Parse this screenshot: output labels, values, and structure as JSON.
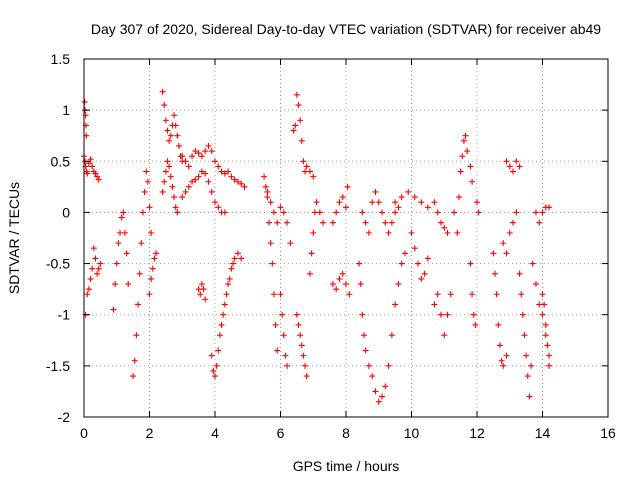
{
  "chart_data": {
    "type": "scatter",
    "title": "Day 307 of 2020, Sidereal Day-to-day VTEC variation (SDTVAR) for receiver ab49",
    "xlabel": "GPS time / hours",
    "ylabel": "SDTVAR / TECUs",
    "xlim": [
      0,
      16
    ],
    "ylim": [
      -2,
      1.5
    ],
    "xticks": [
      "0",
      "2",
      "4",
      "6",
      "8",
      "10",
      "12",
      "14",
      "16"
    ],
    "yticks": [
      "1.5",
      "1",
      "0.5",
      "0",
      "-0.5",
      "-1",
      "-1.5",
      "-2"
    ],
    "grid": true,
    "marker": "+",
    "series_color": "#ff0000",
    "series": [
      {
        "name": "SDTVAR",
        "points": [
          [
            0.0,
            0.55
          ],
          [
            0.03,
            0.5
          ],
          [
            0.05,
            0.45
          ],
          [
            0.08,
            0.4
          ],
          [
            0.1,
            0.38
          ],
          [
            0.15,
            0.48
          ],
          [
            0.2,
            0.52
          ],
          [
            0.25,
            0.45
          ],
          [
            0.3,
            0.4
          ],
          [
            0.35,
            0.38
          ],
          [
            0.4,
            0.35
          ],
          [
            0.45,
            0.32
          ],
          [
            0.02,
            1.08
          ],
          [
            0.03,
            1.0
          ],
          [
            0.05,
            0.95
          ],
          [
            0.06,
            0.85
          ],
          [
            0.07,
            0.75
          ],
          [
            0.05,
            -1.0
          ],
          [
            0.1,
            -0.8
          ],
          [
            0.15,
            -0.75
          ],
          [
            0.2,
            -0.65
          ],
          [
            0.25,
            -0.55
          ],
          [
            0.3,
            -0.35
          ],
          [
            0.35,
            -0.45
          ],
          [
            0.4,
            -0.6
          ],
          [
            0.45,
            -0.55
          ],
          [
            0.5,
            -0.5
          ],
          [
            0.9,
            -0.95
          ],
          [
            0.95,
            -0.7
          ],
          [
            1.0,
            -0.5
          ],
          [
            1.05,
            -0.3
          ],
          [
            1.1,
            -0.2
          ],
          [
            1.15,
            -0.05
          ],
          [
            1.2,
            0.0
          ],
          [
            1.25,
            -0.2
          ],
          [
            1.3,
            -0.4
          ],
          [
            1.35,
            -0.7
          ],
          [
            1.5,
            -1.6
          ],
          [
            1.55,
            -1.45
          ],
          [
            1.6,
            -1.2
          ],
          [
            1.65,
            -0.9
          ],
          [
            1.7,
            -0.6
          ],
          [
            1.75,
            -0.3
          ],
          [
            1.8,
            0.0
          ],
          [
            1.85,
            0.2
          ],
          [
            1.9,
            0.4
          ],
          [
            1.95,
            0.3
          ],
          [
            2.0,
            0.05
          ],
          [
            2.05,
            -0.2
          ],
          [
            2.0,
            -0.8
          ],
          [
            2.05,
            -0.65
          ],
          [
            2.1,
            -0.55
          ],
          [
            2.15,
            -0.45
          ],
          [
            2.2,
            -0.4
          ],
          [
            2.4,
            1.18
          ],
          [
            2.45,
            1.05
          ],
          [
            2.5,
            0.9
          ],
          [
            2.55,
            0.8
          ],
          [
            2.6,
            0.7
          ],
          [
            2.65,
            0.75
          ],
          [
            2.7,
            0.85
          ],
          [
            2.75,
            0.95
          ],
          [
            2.8,
            0.85
          ],
          [
            2.85,
            0.75
          ],
          [
            2.9,
            0.65
          ],
          [
            2.95,
            0.55
          ],
          [
            3.0,
            0.5
          ],
          [
            2.4,
            0.2
          ],
          [
            2.45,
            0.3
          ],
          [
            2.5,
            0.4
          ],
          [
            2.55,
            0.5
          ],
          [
            2.6,
            0.45
          ],
          [
            2.65,
            0.35
          ],
          [
            2.7,
            0.25
          ],
          [
            2.75,
            0.15
          ],
          [
            2.8,
            0.05
          ],
          [
            2.85,
            0.0
          ],
          [
            3.0,
            0.55
          ],
          [
            3.1,
            0.5
          ],
          [
            3.2,
            0.45
          ],
          [
            3.3,
            0.55
          ],
          [
            3.4,
            0.6
          ],
          [
            3.5,
            0.58
          ],
          [
            3.6,
            0.55
          ],
          [
            3.7,
            0.6
          ],
          [
            3.8,
            0.65
          ],
          [
            3.9,
            0.6
          ],
          [
            4.0,
            0.5
          ],
          [
            4.1,
            0.45
          ],
          [
            4.2,
            0.4
          ],
          [
            4.3,
            0.38
          ],
          [
            4.4,
            0.4
          ],
          [
            4.5,
            0.35
          ],
          [
            4.6,
            0.32
          ],
          [
            4.7,
            0.3
          ],
          [
            4.8,
            0.28
          ],
          [
            4.9,
            0.25
          ],
          [
            3.0,
            0.15
          ],
          [
            3.1,
            0.2
          ],
          [
            3.2,
            0.25
          ],
          [
            3.3,
            0.3
          ],
          [
            3.4,
            0.32
          ],
          [
            3.5,
            0.35
          ],
          [
            3.6,
            0.4
          ],
          [
            3.7,
            0.38
          ],
          [
            3.8,
            0.3
          ],
          [
            3.9,
            0.2
          ],
          [
            4.0,
            0.1
          ],
          [
            4.1,
            0.05
          ],
          [
            4.2,
            0.0
          ],
          [
            4.3,
            0.0
          ],
          [
            3.5,
            -0.75
          ],
          [
            3.55,
            -0.8
          ],
          [
            3.6,
            -0.7
          ],
          [
            3.65,
            -0.75
          ],
          [
            3.7,
            -0.85
          ],
          [
            3.9,
            -1.4
          ],
          [
            3.95,
            -1.55
          ],
          [
            4.0,
            -1.6
          ],
          [
            4.05,
            -1.5
          ],
          [
            4.1,
            -1.35
          ],
          [
            4.15,
            -1.2
          ],
          [
            4.2,
            -1.1
          ],
          [
            4.25,
            -1.0
          ],
          [
            4.3,
            -0.9
          ],
          [
            4.35,
            -0.8
          ],
          [
            4.4,
            -0.7
          ],
          [
            4.45,
            -0.65
          ],
          [
            4.5,
            -0.55
          ],
          [
            4.55,
            -0.5
          ],
          [
            4.6,
            -0.45
          ],
          [
            4.7,
            -0.4
          ],
          [
            4.8,
            -0.45
          ],
          [
            5.5,
            0.35
          ],
          [
            5.55,
            0.25
          ],
          [
            5.6,
            0.15
          ],
          [
            5.65,
            -0.1
          ],
          [
            5.7,
            -0.3
          ],
          [
            5.75,
            -0.5
          ],
          [
            5.8,
            -0.8
          ],
          [
            5.85,
            -1.1
          ],
          [
            5.9,
            -1.35
          ],
          [
            5.6,
            0.2
          ],
          [
            5.7,
            0.1
          ],
          [
            5.8,
            0.0
          ],
          [
            5.9,
            -0.1
          ],
          [
            6.0,
            0.05
          ],
          [
            6.1,
            0.0
          ],
          [
            6.2,
            -0.1
          ],
          [
            6.3,
            -0.3
          ],
          [
            6.0,
            -0.8
          ],
          [
            6.05,
            -1.0
          ],
          [
            6.1,
            -1.2
          ],
          [
            6.15,
            -1.4
          ],
          [
            6.2,
            -1.5
          ],
          [
            6.4,
            0.8
          ],
          [
            6.45,
            0.85
          ],
          [
            6.5,
            1.15
          ],
          [
            6.55,
            1.05
          ],
          [
            6.6,
            0.9
          ],
          [
            6.65,
            0.7
          ],
          [
            6.7,
            0.5
          ],
          [
            6.75,
            0.4
          ],
          [
            6.8,
            0.45
          ],
          [
            6.9,
            0.4
          ],
          [
            7.0,
            0.35
          ],
          [
            6.5,
            -1.0
          ],
          [
            6.55,
            -1.1
          ],
          [
            6.6,
            -1.2
          ],
          [
            6.65,
            -1.3
          ],
          [
            6.7,
            -1.4
          ],
          [
            6.75,
            -1.5
          ],
          [
            6.8,
            -1.6
          ],
          [
            6.9,
            -0.6
          ],
          [
            6.95,
            -0.4
          ],
          [
            7.0,
            -0.2
          ],
          [
            7.05,
            0.0
          ],
          [
            7.1,
            0.1
          ],
          [
            7.2,
            0.0
          ],
          [
            7.3,
            -0.1
          ],
          [
            7.6,
            -0.7
          ],
          [
            7.7,
            -0.75
          ],
          [
            7.8,
            -0.65
          ],
          [
            7.9,
            -0.6
          ],
          [
            8.0,
            -0.7
          ],
          [
            8.1,
            -0.8
          ],
          [
            7.6,
            -0.1
          ],
          [
            7.7,
            0.0
          ],
          [
            7.8,
            0.1
          ],
          [
            7.9,
            0.15
          ],
          [
            8.0,
            0.05
          ],
          [
            8.05,
            0.25
          ],
          [
            8.4,
            -0.5
          ],
          [
            8.45,
            -0.7
          ],
          [
            8.5,
            -1.0
          ],
          [
            8.55,
            -1.2
          ],
          [
            8.6,
            -1.35
          ],
          [
            8.7,
            -1.5
          ],
          [
            8.8,
            -1.6
          ],
          [
            8.9,
            -1.75
          ],
          [
            9.0,
            -1.85
          ],
          [
            9.1,
            -1.8
          ],
          [
            9.2,
            -1.7
          ],
          [
            9.3,
            -1.5
          ],
          [
            9.4,
            -1.2
          ],
          [
            9.5,
            -0.9
          ],
          [
            9.6,
            -0.7
          ],
          [
            9.7,
            -0.5
          ],
          [
            9.8,
            -0.4
          ],
          [
            8.5,
            0.0
          ],
          [
            8.6,
            -0.1
          ],
          [
            8.7,
            -0.2
          ],
          [
            8.8,
            0.1
          ],
          [
            8.9,
            0.2
          ],
          [
            9.0,
            0.1
          ],
          [
            9.1,
            0.0
          ],
          [
            9.2,
            -0.1
          ],
          [
            9.3,
            -0.2
          ],
          [
            9.4,
            -0.1
          ],
          [
            9.5,
            0.0
          ],
          [
            9.6,
            0.05
          ],
          [
            9.5,
            0.1
          ],
          [
            9.7,
            0.15
          ],
          [
            9.9,
            0.2
          ],
          [
            10.1,
            0.15
          ],
          [
            10.3,
            0.1
          ],
          [
            10.5,
            0.05
          ],
          [
            10.0,
            -0.2
          ],
          [
            10.1,
            -0.35
          ],
          [
            10.2,
            -0.5
          ],
          [
            10.3,
            -0.65
          ],
          [
            10.4,
            -0.6
          ],
          [
            10.5,
            -0.45
          ],
          [
            10.7,
            -0.9
          ],
          [
            10.8,
            -0.8
          ],
          [
            10.9,
            -1.0
          ],
          [
            11.0,
            -1.2
          ],
          [
            11.1,
            -1.0
          ],
          [
            11.2,
            -0.8
          ],
          [
            10.7,
            0.1
          ],
          [
            10.8,
            0.0
          ],
          [
            10.9,
            -0.1
          ],
          [
            11.0,
            -0.15
          ],
          [
            11.1,
            -0.2
          ],
          [
            11.3,
            0.0
          ],
          [
            11.4,
            -0.2
          ],
          [
            11.45,
            0.15
          ],
          [
            11.5,
            0.4
          ],
          [
            11.55,
            0.55
          ],
          [
            11.6,
            0.7
          ],
          [
            11.65,
            0.75
          ],
          [
            11.7,
            0.6
          ],
          [
            11.8,
            0.45
          ],
          [
            11.85,
            0.3
          ],
          [
            11.8,
            -0.5
          ],
          [
            11.85,
            -0.8
          ],
          [
            11.9,
            -1.0
          ],
          [
            11.95,
            -1.1
          ],
          [
            12.0,
            0.1
          ],
          [
            12.05,
            0.0
          ],
          [
            12.5,
            -0.4
          ],
          [
            12.55,
            -0.6
          ],
          [
            12.6,
            -0.8
          ],
          [
            12.65,
            -1.1
          ],
          [
            12.7,
            -1.3
          ],
          [
            12.75,
            -1.45
          ],
          [
            12.8,
            -1.5
          ],
          [
            12.9,
            -1.4
          ],
          [
            12.8,
            -0.3
          ],
          [
            12.9,
            -0.4
          ],
          [
            13.0,
            -0.2
          ],
          [
            13.1,
            -0.1
          ],
          [
            13.2,
            0.0
          ],
          [
            12.9,
            0.5
          ],
          [
            13.0,
            0.45
          ],
          [
            13.1,
            0.4
          ],
          [
            13.2,
            0.5
          ],
          [
            13.3,
            0.45
          ],
          [
            13.3,
            -0.6
          ],
          [
            13.35,
            -0.8
          ],
          [
            13.4,
            -1.0
          ],
          [
            13.45,
            -1.2
          ],
          [
            13.5,
            -1.4
          ],
          [
            13.55,
            -1.6
          ],
          [
            13.6,
            -1.8
          ],
          [
            13.65,
            -1.5
          ],
          [
            13.7,
            -0.5
          ],
          [
            13.8,
            -0.7
          ],
          [
            13.9,
            -0.9
          ],
          [
            14.0,
            -1.0
          ],
          [
            14.1,
            -1.2
          ],
          [
            14.2,
            -1.4
          ],
          [
            13.8,
            0.0
          ],
          [
            13.9,
            -0.1
          ],
          [
            14.0,
            0.0
          ],
          [
            14.1,
            0.05
          ],
          [
            14.2,
            0.05
          ],
          [
            14.0,
            -0.8
          ],
          [
            14.05,
            -0.9
          ],
          [
            14.1,
            -1.1
          ],
          [
            14.15,
            -1.3
          ],
          [
            14.2,
            -1.5
          ]
        ]
      }
    ]
  }
}
